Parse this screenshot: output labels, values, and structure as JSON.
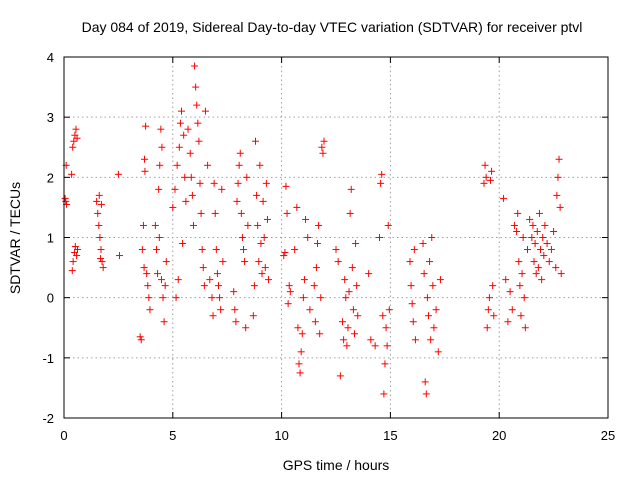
{
  "chart_data": {
    "type": "scatter",
    "title": "Day 084 of 2019, Sidereal Day-to-day VTEC variation (SDTVAR) for receiver ptvl",
    "xlabel": "GPS time / hours",
    "ylabel": "SDTVAR / TECUs",
    "xlim": [
      0,
      25
    ],
    "ylim": [
      -2,
      4
    ],
    "xticks": [
      "0",
      "5",
      "10",
      "15",
      "20",
      "25"
    ],
    "yticks": [
      "-2",
      "-1",
      "0",
      "1",
      "2",
      "3",
      "4"
    ],
    "grid": true,
    "marker": "+",
    "color": "#ff0000",
    "series": [
      {
        "name": "SDTVAR",
        "points": [
          [
            0.05,
            1.65
          ],
          [
            0.08,
            1.6
          ],
          [
            0.1,
            2.2
          ],
          [
            0.12,
            1.55
          ],
          [
            0.35,
            2.05
          ],
          [
            0.4,
            2.5
          ],
          [
            0.45,
            2.6
          ],
          [
            0.5,
            2.7
          ],
          [
            0.55,
            2.8
          ],
          [
            0.6,
            2.65
          ],
          [
            0.42,
            0.6
          ],
          [
            0.48,
            0.75
          ],
          [
            0.52,
            0.85
          ],
          [
            0.58,
            0.7
          ],
          [
            0.38,
            0.45
          ],
          [
            0.62,
            0.8
          ],
          [
            1.5,
            1.6
          ],
          [
            1.55,
            1.4
          ],
          [
            1.6,
            1.2
          ],
          [
            1.65,
            1.0
          ],
          [
            1.7,
            0.8
          ],
          [
            1.75,
            0.6
          ],
          [
            1.8,
            0.5
          ],
          [
            1.62,
            1.7
          ],
          [
            1.72,
            1.55
          ],
          [
            1.68,
            0.65
          ],
          [
            2.5,
            2.05
          ],
          [
            2.55,
            0.7
          ],
          [
            3.5,
            -0.65
          ],
          [
            3.55,
            -0.7
          ],
          [
            3.6,
            0.8
          ],
          [
            3.65,
            1.2
          ],
          [
            3.7,
            2.3
          ],
          [
            3.72,
            2.1
          ],
          [
            3.75,
            2.85
          ],
          [
            3.8,
            0.4
          ],
          [
            3.85,
            0.2
          ],
          [
            3.9,
            0.0
          ],
          [
            3.95,
            -0.2
          ],
          [
            3.68,
            0.5
          ],
          [
            4.2,
            1.2
          ],
          [
            4.25,
            0.8
          ],
          [
            4.3,
            0.4
          ],
          [
            4.35,
            1.8
          ],
          [
            4.4,
            2.2
          ],
          [
            4.45,
            2.8
          ],
          [
            4.5,
            2.5
          ],
          [
            4.55,
            0.0
          ],
          [
            4.6,
            -0.4
          ],
          [
            4.65,
            0.2
          ],
          [
            4.7,
            0.6
          ],
          [
            4.38,
            1.0
          ],
          [
            4.48,
            0.3
          ],
          [
            5.0,
            1.5
          ],
          [
            5.1,
            1.8
          ],
          [
            5.2,
            2.2
          ],
          [
            5.3,
            2.5
          ],
          [
            5.35,
            2.9
          ],
          [
            5.4,
            3.1
          ],
          [
            5.5,
            2.7
          ],
          [
            5.55,
            2.0
          ],
          [
            5.6,
            1.6
          ],
          [
            5.7,
            2.8
          ],
          [
            5.8,
            2.4
          ],
          [
            5.85,
            2.0
          ],
          [
            5.9,
            1.7
          ],
          [
            5.95,
            1.2
          ],
          [
            5.45,
            0.9
          ],
          [
            5.25,
            0.3
          ],
          [
            5.15,
            0.0
          ],
          [
            6.0,
            3.85
          ],
          [
            6.05,
            3.5
          ],
          [
            6.1,
            3.2
          ],
          [
            6.15,
            2.9
          ],
          [
            6.2,
            2.6
          ],
          [
            6.25,
            1.9
          ],
          [
            6.3,
            1.4
          ],
          [
            6.35,
            0.8
          ],
          [
            6.4,
            0.5
          ],
          [
            6.45,
            0.2
          ],
          [
            6.5,
            3.1
          ],
          [
            6.6,
            2.2
          ],
          [
            6.7,
            0.3
          ],
          [
            6.8,
            0.0
          ],
          [
            6.85,
            -0.3
          ],
          [
            6.9,
            1.9
          ],
          [
            6.95,
            1.4
          ],
          [
            7.0,
            0.8
          ],
          [
            7.05,
            0.4
          ],
          [
            7.1,
            0.2
          ],
          [
            7.15,
            0.0
          ],
          [
            7.2,
            -0.2
          ],
          [
            7.25,
            1.8
          ],
          [
            7.3,
            0.6
          ],
          [
            7.8,
            0.1
          ],
          [
            7.85,
            -0.2
          ],
          [
            7.9,
            -0.4
          ],
          [
            7.95,
            1.6
          ],
          [
            8.0,
            1.9
          ],
          [
            8.05,
            2.2
          ],
          [
            8.1,
            2.4
          ],
          [
            8.15,
            1.4
          ],
          [
            8.2,
            1.0
          ],
          [
            8.25,
            0.8
          ],
          [
            8.3,
            0.6
          ],
          [
            8.35,
            -0.5
          ],
          [
            8.4,
            2.0
          ],
          [
            8.45,
            1.2
          ],
          [
            8.7,
            -0.3
          ],
          [
            8.75,
            0.2
          ],
          [
            8.8,
            2.6
          ],
          [
            8.85,
            1.7
          ],
          [
            8.9,
            1.2
          ],
          [
            8.95,
            0.6
          ],
          [
            9.0,
            2.2
          ],
          [
            9.05,
            0.9
          ],
          [
            9.1,
            0.4
          ],
          [
            9.15,
            1.6
          ],
          [
            9.2,
            1.0
          ],
          [
            9.25,
            0.5
          ],
          [
            9.3,
            1.9
          ],
          [
            9.35,
            1.3
          ],
          [
            9.4,
            0.3
          ],
          [
            10.1,
            0.7
          ],
          [
            10.15,
            0.75
          ],
          [
            10.2,
            1.85
          ],
          [
            10.25,
            1.4
          ],
          [
            10.3,
            -0.1
          ],
          [
            10.35,
            0.2
          ],
          [
            10.4,
            0.1
          ],
          [
            10.6,
            0.8
          ],
          [
            10.7,
            1.5
          ],
          [
            10.75,
            -0.5
          ],
          [
            10.8,
            -1.1
          ],
          [
            10.85,
            -1.25
          ],
          [
            10.9,
            -0.9
          ],
          [
            10.95,
            -0.6
          ],
          [
            11.0,
            0.0
          ],
          [
            11.05,
            0.3
          ],
          [
            11.1,
            1.3
          ],
          [
            11.2,
            1.0
          ],
          [
            11.3,
            -0.2
          ],
          [
            11.5,
            0.2
          ],
          [
            11.55,
            -0.4
          ],
          [
            11.6,
            0.5
          ],
          [
            11.65,
            0.9
          ],
          [
            11.7,
            1.2
          ],
          [
            11.75,
            -0.6
          ],
          [
            11.8,
            0.0
          ],
          [
            11.85,
            2.5
          ],
          [
            11.9,
            2.4
          ],
          [
            11.95,
            2.6
          ],
          [
            12.5,
            0.8
          ],
          [
            12.6,
            0.6
          ],
          [
            12.7,
            -1.3
          ],
          [
            12.8,
            -0.4
          ],
          [
            12.85,
            -0.7
          ],
          [
            12.9,
            0.3
          ],
          [
            12.95,
            0.0
          ],
          [
            13.0,
            -0.8
          ],
          [
            13.05,
            -0.5
          ],
          [
            13.1,
            0.1
          ],
          [
            13.15,
            1.4
          ],
          [
            13.2,
            1.8
          ],
          [
            13.25,
            0.5
          ],
          [
            13.3,
            -0.2
          ],
          [
            13.35,
            -0.6
          ],
          [
            13.4,
            0.9
          ],
          [
            13.45,
            0.2
          ],
          [
            13.5,
            -0.3
          ],
          [
            14.0,
            0.4
          ],
          [
            14.1,
            -0.7
          ],
          [
            14.3,
            -0.8
          ],
          [
            14.5,
            1.0
          ],
          [
            14.55,
            1.9
          ],
          [
            14.6,
            2.05
          ],
          [
            14.65,
            -0.3
          ],
          [
            14.7,
            -1.6
          ],
          [
            14.75,
            -1.1
          ],
          [
            14.8,
            -0.5
          ],
          [
            14.85,
            -0.8
          ],
          [
            14.9,
            1.2
          ],
          [
            14.95,
            -0.2
          ],
          [
            15.9,
            0.6
          ],
          [
            15.95,
            0.2
          ],
          [
            16.0,
            -0.1
          ],
          [
            16.05,
            -0.4
          ],
          [
            16.1,
            0.8
          ],
          [
            16.15,
            -0.7
          ],
          [
            16.5,
            0.9
          ],
          [
            16.55,
            0.4
          ],
          [
            16.6,
            -1.4
          ],
          [
            16.65,
            -1.6
          ],
          [
            16.7,
            0.0
          ],
          [
            16.75,
            -0.3
          ],
          [
            16.8,
            0.6
          ],
          [
            16.85,
            -0.7
          ],
          [
            16.9,
            1.0
          ],
          [
            16.95,
            0.2
          ],
          [
            17.0,
            -0.5
          ],
          [
            17.1,
            -0.2
          ],
          [
            17.2,
            -0.9
          ],
          [
            17.3,
            0.3
          ],
          [
            19.3,
            1.9
          ],
          [
            19.35,
            2.2
          ],
          [
            19.4,
            2.0
          ],
          [
            19.45,
            -0.5
          ],
          [
            19.5,
            -0.2
          ],
          [
            19.55,
            0.0
          ],
          [
            19.6,
            1.95
          ],
          [
            19.65,
            2.1
          ],
          [
            19.7,
            0.2
          ],
          [
            19.75,
            -0.3
          ],
          [
            20.2,
            1.65
          ],
          [
            20.3,
            0.3
          ],
          [
            20.4,
            -0.4
          ],
          [
            20.5,
            0.1
          ],
          [
            20.6,
            -0.2
          ],
          [
            20.7,
            1.2
          ],
          [
            20.8,
            1.1
          ],
          [
            20.85,
            1.4
          ],
          [
            20.9,
            0.6
          ],
          [
            20.95,
            0.2
          ],
          [
            21.0,
            -0.3
          ],
          [
            21.05,
            0.4
          ],
          [
            21.1,
            1.0
          ],
          [
            21.15,
            0.0
          ],
          [
            21.2,
            -0.5
          ],
          [
            21.3,
            0.8
          ],
          [
            21.4,
            1.3
          ],
          [
            21.5,
            1.0
          ],
          [
            21.55,
            1.2
          ],
          [
            21.6,
            0.6
          ],
          [
            21.65,
            0.9
          ],
          [
            21.7,
            0.4
          ],
          [
            21.75,
            1.1
          ],
          [
            21.8,
            0.5
          ],
          [
            21.85,
            1.4
          ],
          [
            21.9,
            0.8
          ],
          [
            21.95,
            0.3
          ],
          [
            22.0,
            1.0
          ],
          [
            22.05,
            0.7
          ],
          [
            22.1,
            1.2
          ],
          [
            22.2,
            0.9
          ],
          [
            22.3,
            0.6
          ],
          [
            22.4,
            0.8
          ],
          [
            22.5,
            1.1
          ],
          [
            22.6,
            0.5
          ],
          [
            22.65,
            1.7
          ],
          [
            22.7,
            2.0
          ],
          [
            22.75,
            2.3
          ],
          [
            22.8,
            1.5
          ],
          [
            22.85,
            0.4
          ]
        ]
      }
    ]
  }
}
